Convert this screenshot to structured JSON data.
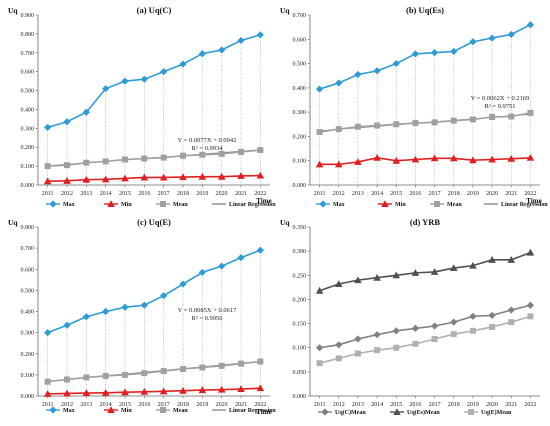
{
  "chart_data": [
    {
      "type": "line",
      "title": "(a)  Uq(C)",
      "ylabel": "Uq",
      "xlabel": "Time",
      "x": [
        2011,
        2012,
        2013,
        2014,
        2015,
        2016,
        2017,
        2018,
        2019,
        2020,
        2021,
        2022
      ],
      "ylim": [
        0,
        0.9
      ],
      "yticks": [
        "0.000",
        "0.100",
        "0.200",
        "0.300",
        "0.400",
        "0.500",
        "0.600",
        "0.700",
        "0.800",
        "0.900"
      ],
      "ytick_values": [
        0,
        0.1,
        0.2,
        0.3,
        0.4,
        0.5,
        0.6,
        0.7,
        0.8,
        0.9
      ],
      "series": [
        {
          "name": "Max",
          "color": "#2e9bd6",
          "marker": "diamond",
          "values": [
            0.305,
            0.335,
            0.385,
            0.51,
            0.55,
            0.56,
            0.6,
            0.64,
            0.695,
            0.715,
            0.765,
            0.795
          ]
        },
        {
          "name": "Min",
          "color": "#e02020",
          "marker": "triangle",
          "values": [
            0.02,
            0.022,
            0.028,
            0.03,
            0.035,
            0.04,
            0.04,
            0.042,
            0.044,
            0.044,
            0.048,
            0.05
          ]
        },
        {
          "name": "Mean",
          "color": "#a0a0a0",
          "marker": "square",
          "values": [
            0.1,
            0.105,
            0.118,
            0.125,
            0.135,
            0.14,
            0.145,
            0.155,
            0.16,
            0.165,
            0.175,
            0.185
          ]
        }
      ],
      "regression_line": [
        0.1019,
        0.1096,
        0.1173,
        0.125,
        0.1327,
        0.1404,
        0.1481,
        0.1558,
        0.1635,
        0.1712,
        0.1789,
        0.1866
      ],
      "annotation": [
        "Y = 0.0077X + 0.0942",
        "R² = 0.9934"
      ],
      "legend": [
        "Max",
        "Min",
        "Mean",
        "Linear Regression"
      ],
      "grid": false,
      "dotted_droplines": true
    },
    {
      "type": "line",
      "title": "(b)  Uq(Es)",
      "ylabel": "Uq",
      "xlabel": "Time",
      "x": [
        2011,
        2012,
        2013,
        2014,
        2015,
        2016,
        2017,
        2018,
        2019,
        2020,
        2021,
        2022
      ],
      "ylim": [
        0,
        0.7
      ],
      "yticks": [
        "0.000",
        "0.100",
        "0.200",
        "0.300",
        "0.400",
        "0.500",
        "0.600",
        "0.700"
      ],
      "ytick_values": [
        0,
        0.1,
        0.2,
        0.3,
        0.4,
        0.5,
        0.6,
        0.7
      ],
      "series": [
        {
          "name": "Max",
          "color": "#2e9bd6",
          "marker": "diamond",
          "values": [
            0.395,
            0.42,
            0.455,
            0.47,
            0.5,
            0.54,
            0.545,
            0.55,
            0.59,
            0.605,
            0.62,
            0.66
          ]
        },
        {
          "name": "Min",
          "color": "#e02020",
          "marker": "triangle",
          "values": [
            0.085,
            0.085,
            0.095,
            0.112,
            0.1,
            0.105,
            0.11,
            0.11,
            0.102,
            0.105,
            0.108,
            0.112
          ]
        },
        {
          "name": "Mean",
          "color": "#a0a0a0",
          "marker": "square",
          "values": [
            0.218,
            0.23,
            0.24,
            0.245,
            0.25,
            0.255,
            0.258,
            0.265,
            0.27,
            0.28,
            0.282,
            0.297
          ]
        }
      ],
      "regression_line": [
        0.2231,
        0.2293,
        0.2355,
        0.2417,
        0.2479,
        0.2541,
        0.2603,
        0.2665,
        0.2727,
        0.2789,
        0.2851,
        0.2913
      ],
      "annotation": [
        "Y = 0.0062X + 0.2169",
        "R² = 0.9751"
      ],
      "legend": [
        "Max",
        "Min",
        "Mean",
        "Linear Regression"
      ],
      "grid": false,
      "dotted_droplines": true
    },
    {
      "type": "line",
      "title": "(c)  Uq(E)",
      "ylabel": "Uq",
      "xlabel": "Time",
      "x": [
        2011,
        2012,
        2013,
        2014,
        2015,
        2016,
        2017,
        2018,
        2019,
        2020,
        2021,
        2022
      ],
      "ylim": [
        0,
        0.8
      ],
      "yticks": [
        "0.000",
        "0.100",
        "0.200",
        "0.300",
        "0.400",
        "0.500",
        "0.600",
        "0.700",
        "0.800"
      ],
      "ytick_values": [
        0,
        0.1,
        0.2,
        0.3,
        0.4,
        0.5,
        0.6,
        0.7,
        0.8
      ],
      "series": [
        {
          "name": "Max",
          "color": "#2e9bd6",
          "marker": "diamond",
          "values": [
            0.3,
            0.335,
            0.375,
            0.4,
            0.42,
            0.43,
            0.475,
            0.53,
            0.585,
            0.615,
            0.655,
            0.69
          ]
        },
        {
          "name": "Min",
          "color": "#e02020",
          "marker": "triangle",
          "values": [
            0.01,
            0.012,
            0.014,
            0.015,
            0.018,
            0.02,
            0.022,
            0.025,
            0.028,
            0.03,
            0.033,
            0.037
          ]
        },
        {
          "name": "Mean",
          "color": "#a0a0a0",
          "marker": "square",
          "values": [
            0.068,
            0.078,
            0.088,
            0.095,
            0.1,
            0.108,
            0.118,
            0.128,
            0.135,
            0.143,
            0.153,
            0.163
          ]
        }
      ],
      "regression_line": [
        0.0702,
        0.0787,
        0.0872,
        0.0957,
        0.1042,
        0.1127,
        0.1212,
        0.1297,
        0.1382,
        0.1467,
        0.1552,
        0.1637
      ],
      "annotation": [
        "Y = 0.0085X + 0.0617",
        "R² = 0.9956"
      ],
      "legend": [
        "Max",
        "Min",
        "Mean",
        "Linear Regression"
      ],
      "grid": false,
      "dotted_droplines": true
    },
    {
      "type": "line",
      "title": "(d)  YRB",
      "ylabel": "Uq",
      "xlabel": "",
      "x": [
        2011,
        2012,
        2013,
        2014,
        2015,
        2016,
        2017,
        2018,
        2019,
        2020,
        2021,
        2022
      ],
      "ylim": [
        0,
        0.35
      ],
      "yticks": [
        "0.000",
        "0.050",
        "0.100",
        "0.150",
        "0.200",
        "0.250",
        "0.300",
        "0.350"
      ],
      "ytick_values": [
        0,
        0.05,
        0.1,
        0.15,
        0.2,
        0.25,
        0.3,
        0.35
      ],
      "series": [
        {
          "name": "Uq(C)Mean",
          "color": "#808080",
          "marker": "diamond",
          "values": [
            0.1,
            0.106,
            0.118,
            0.127,
            0.135,
            0.14,
            0.145,
            0.153,
            0.165,
            0.167,
            0.178,
            0.188
          ]
        },
        {
          "name": "Uq(Es)Mean",
          "color": "#505050",
          "marker": "triangle",
          "values": [
            0.218,
            0.232,
            0.24,
            0.245,
            0.25,
            0.255,
            0.257,
            0.265,
            0.27,
            0.282,
            0.282,
            0.297
          ]
        },
        {
          "name": "Uq(E)Mean",
          "color": "#b0b0b0",
          "marker": "square",
          "values": [
            0.068,
            0.078,
            0.088,
            0.095,
            0.1,
            0.108,
            0.118,
            0.128,
            0.135,
            0.143,
            0.153,
            0.165
          ]
        }
      ],
      "legend": [
        "Uq(C)Mean",
        "Uq(Es)Mean",
        "Uq(E)Mean"
      ],
      "grid": false,
      "dotted_droplines": false
    }
  ]
}
